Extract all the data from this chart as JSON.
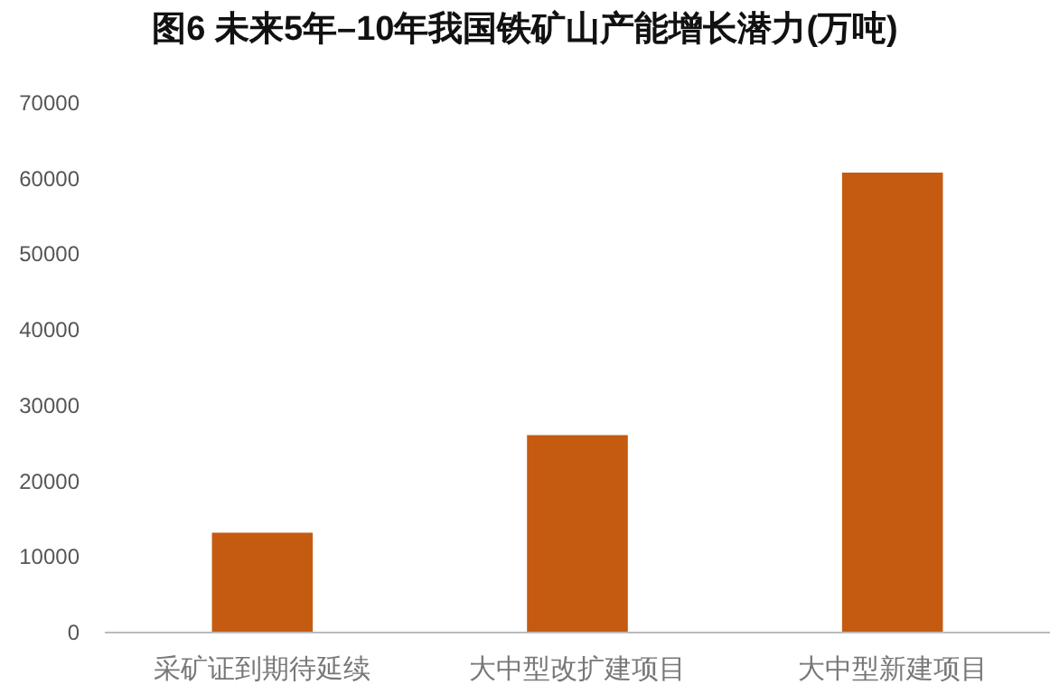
{
  "chart_data": {
    "type": "bar",
    "title": "图6 未来5年–10年我国铁矿山产能增长潜力(万吨)",
    "categories": [
      "采矿证到期待延续",
      "大中型改扩建项目",
      "大中型新建项目"
    ],
    "values": [
      13200,
      26100,
      60800
    ],
    "color": "#c55a11",
    "ylim": [
      0,
      70000
    ],
    "yticks": [
      0,
      10000,
      20000,
      30000,
      40000,
      50000,
      60000,
      70000
    ],
    "grid": false
  }
}
